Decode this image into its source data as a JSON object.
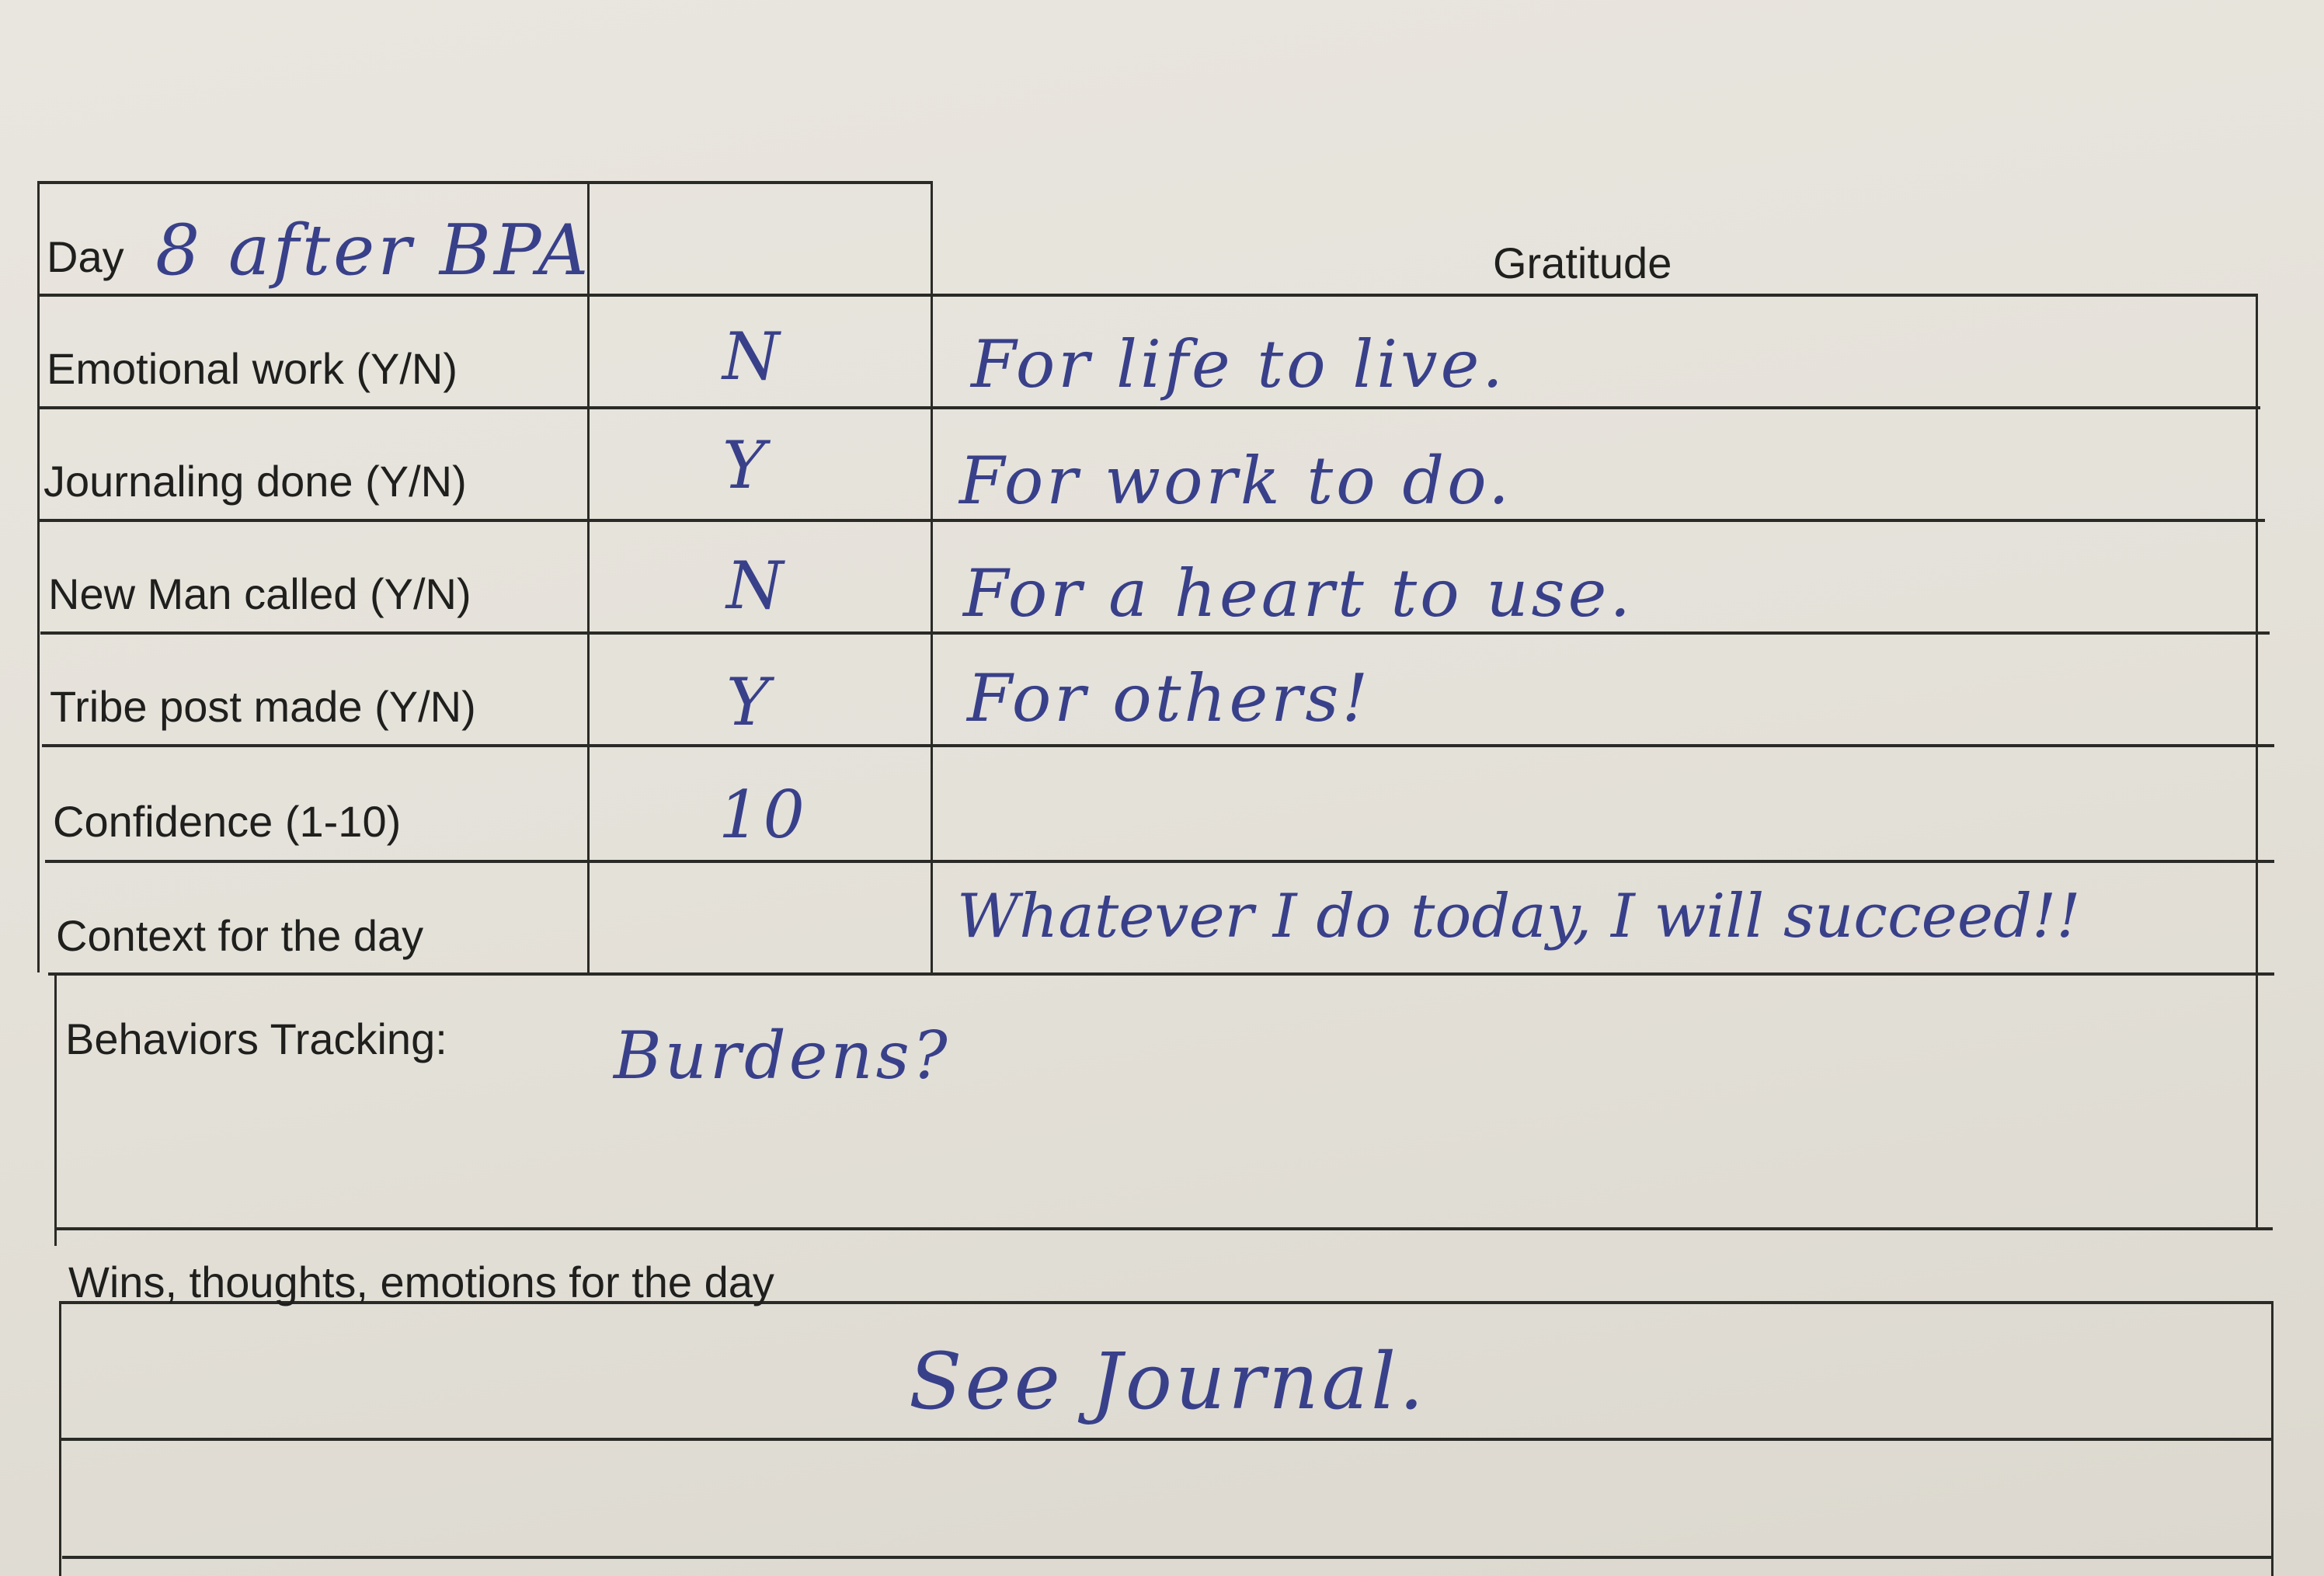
{
  "form": {
    "day_label": "Day",
    "day_value": "8 after BPA",
    "gratitude_header": "Gratitude",
    "rows": [
      {
        "label": "Emotional work  (Y/N)",
        "value": "N",
        "gratitude": "For life to live."
      },
      {
        "label": "Journaling done (Y/N)",
        "value": "Y",
        "gratitude": "For work to do."
      },
      {
        "label": "New Man called (Y/N)",
        "value": "N",
        "gratitude": "For a heart to use."
      },
      {
        "label": "Tribe post made (Y/N)",
        "value": "Y",
        "gratitude": "For others!"
      },
      {
        "label": "Confidence (1-10)",
        "value": "10",
        "gratitude": ""
      },
      {
        "label": "Context for the day",
        "value": "",
        "gratitude": "Whatever I do today, I will succeed!!"
      }
    ],
    "behaviors_label": "Behaviors Tracking:",
    "behaviors_value": "Burdens?",
    "wins_label": "Wins, thoughts, emotions for the day",
    "wins_value": "See Journal."
  },
  "colors": {
    "ink": "#39408a",
    "paper": "#e6e3dc",
    "rule": "#2a2a26"
  }
}
